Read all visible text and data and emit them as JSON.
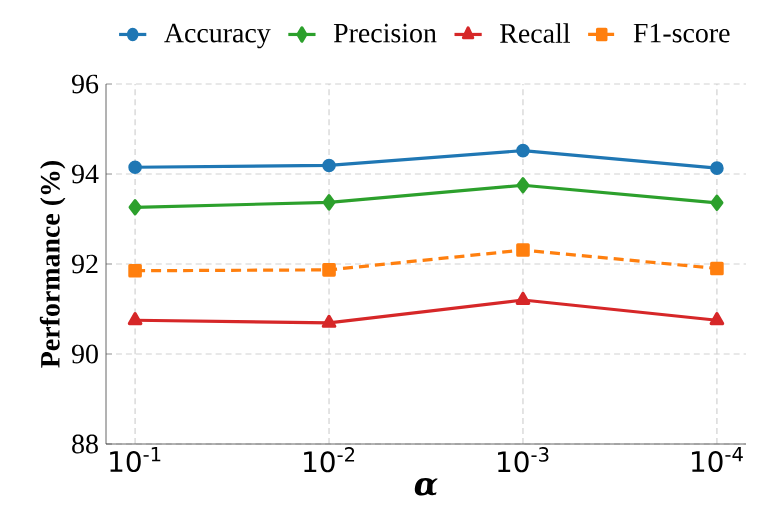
{
  "chart_data": {
    "type": "line",
    "xlabel": "α",
    "ylabel": "Performance (%)",
    "categories": [
      "10$^{-1}$",
      "10$^{-2}$",
      "10$^{-3}$",
      "10$^{-4}$"
    ],
    "ylim": [
      88,
      96
    ],
    "yticks": [
      88,
      90,
      92,
      94,
      96
    ],
    "grid": true,
    "legend": "top",
    "series": [
      {
        "name": "Accuracy",
        "color": "#1f77b4",
        "marker": "circle",
        "line_style": "solid",
        "values": [
          94.15,
          94.19,
          94.52,
          94.13
        ]
      },
      {
        "name": "Precision",
        "color": "#2ca02c",
        "marker": "diamond",
        "line_style": "solid",
        "values": [
          93.26,
          93.37,
          93.75,
          93.36
        ]
      },
      {
        "name": "Recall",
        "color": "#d62728",
        "marker": "triangle",
        "line_style": "solid",
        "values": [
          90.75,
          90.69,
          91.2,
          90.75
        ]
      },
      {
        "name": "F1-score",
        "color": "#ff7f0e",
        "marker": "square",
        "line_style": "dashed",
        "values": [
          91.85,
          91.87,
          92.31,
          91.9
        ]
      }
    ]
  }
}
